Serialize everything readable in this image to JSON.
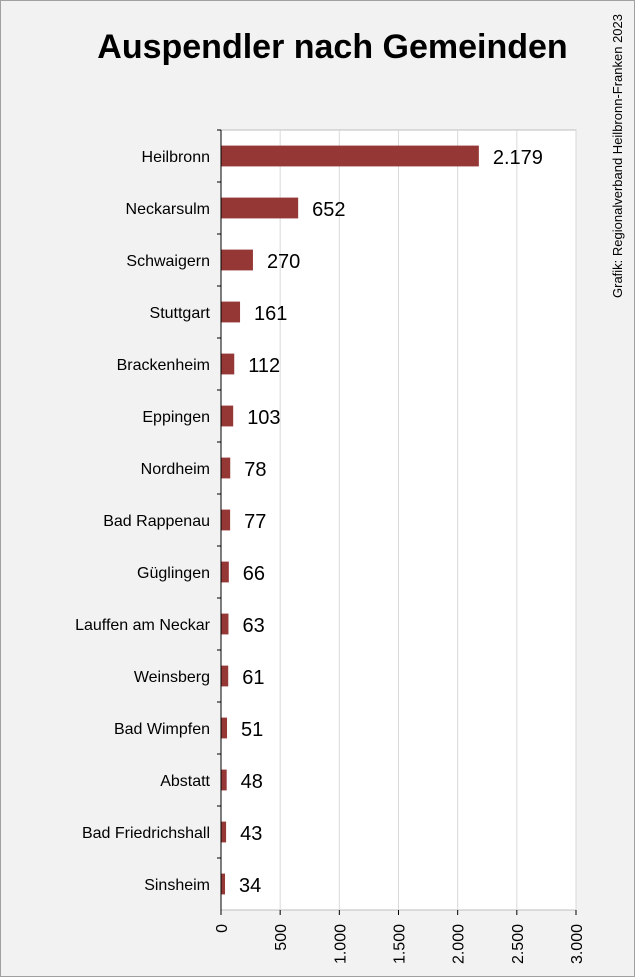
{
  "chart_data": {
    "type": "bar",
    "orientation": "horizontal",
    "title": "Auspendler nach Gemeinden",
    "source": "Grafik: Regionalverband Heilbronn-Franken 2023",
    "categories": [
      "Heilbronn",
      "Neckarsulm",
      "Schwaigern",
      "Stuttgart",
      "Brackenheim",
      "Eppingen",
      "Nordheim",
      "Bad Rappenau",
      "Güglingen",
      "Lauffen am Neckar",
      "Weinsberg",
      "Bad Wimpfen",
      "Abstatt",
      "Bad Friedrichshall",
      "Sinsheim"
    ],
    "values": [
      2179,
      652,
      270,
      161,
      112,
      103,
      78,
      77,
      66,
      63,
      61,
      51,
      48,
      43,
      34
    ],
    "value_labels": [
      "2.179",
      "652",
      "270",
      "161",
      "112",
      "103",
      "78",
      "77",
      "66",
      "63",
      "61",
      "51",
      "48",
      "43",
      "34"
    ],
    "xlim": [
      0,
      3000
    ],
    "xticks": [
      0,
      500,
      1000,
      1500,
      2000,
      2500,
      3000
    ],
    "xtick_labels": [
      "0",
      "500",
      "1.000",
      "1.500",
      "2.000",
      "2.500",
      "3.000"
    ],
    "xlabel": "",
    "ylabel": "",
    "grid": "vertical",
    "legend": "none",
    "bar_color": "#953735"
  }
}
